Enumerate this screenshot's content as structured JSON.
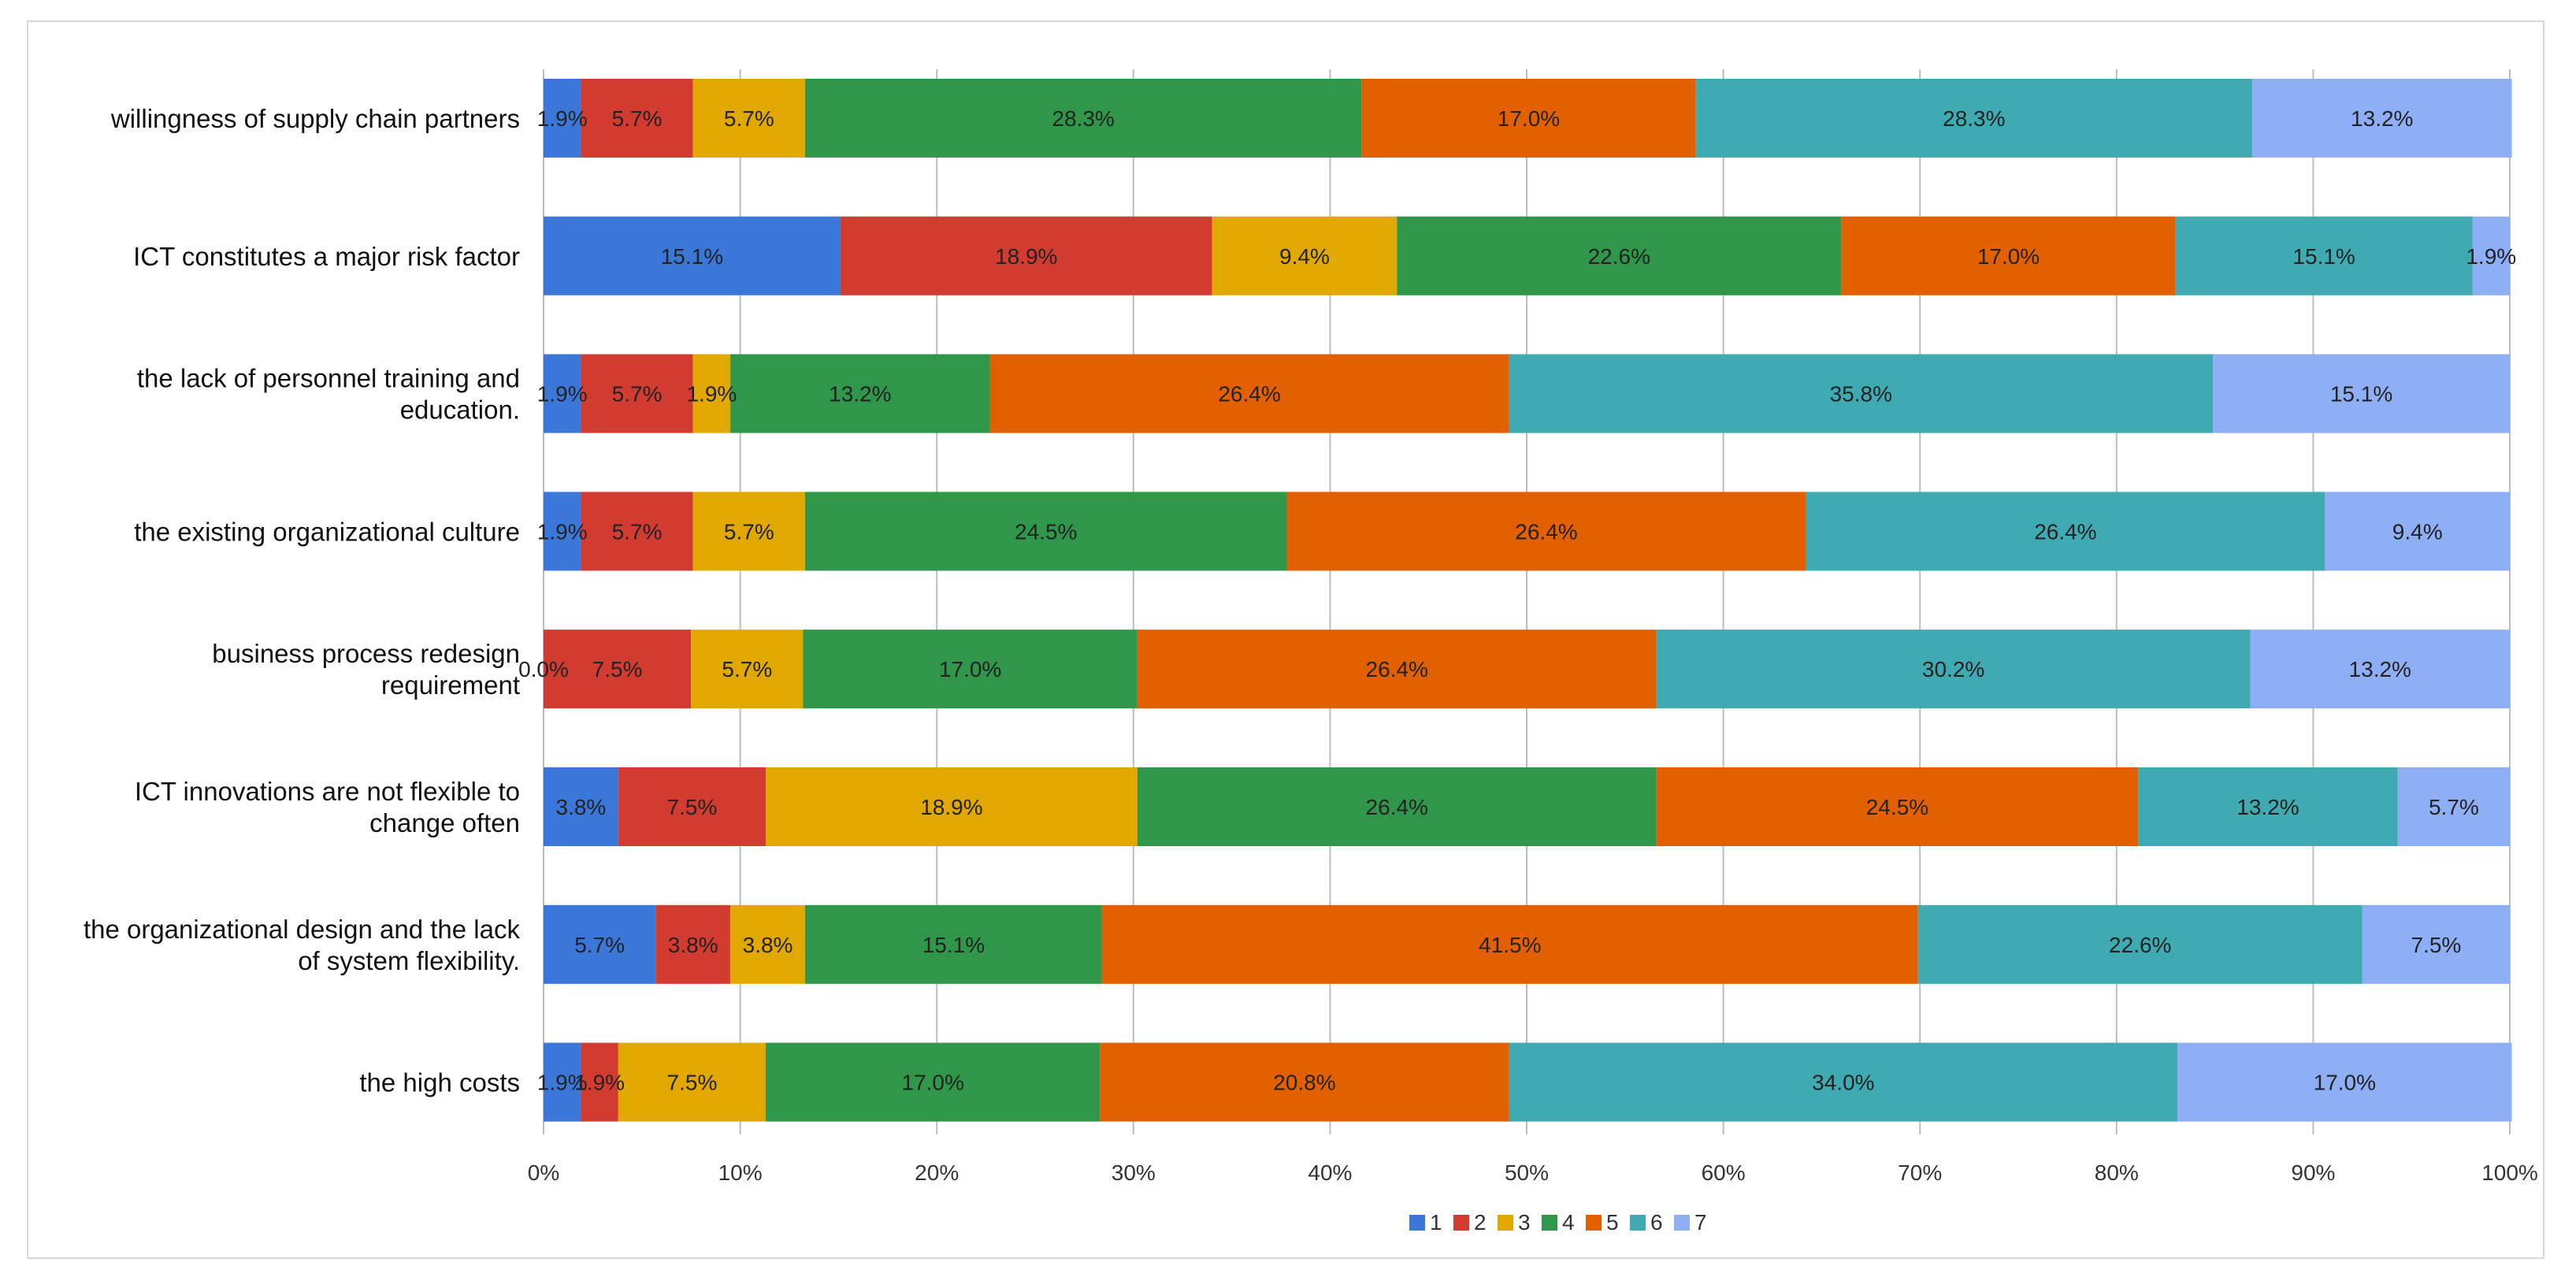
{
  "chart_data": {
    "type": "bar",
    "orientation": "horizontal",
    "stacked": "percent",
    "title": "",
    "xlabel": "",
    "ylabel": "",
    "xlim": [
      0,
      100
    ],
    "grid": true,
    "legend_position": "bottom",
    "x_ticks": [
      "0%",
      "10%",
      "20%",
      "30%",
      "40%",
      "50%",
      "60%",
      "70%",
      "80%",
      "90%",
      "100%"
    ],
    "categories": [
      [
        "willingness of supply chain partners"
      ],
      [
        "ICT constitutes a major risk factor"
      ],
      [
        "the lack of personnel training  and",
        "education."
      ],
      [
        "the existing organizational culture"
      ],
      [
        "business process redesign",
        "requirement"
      ],
      [
        "ICT innovations are not flexible to",
        "change often"
      ],
      [
        "the organizational design and the lack",
        "of system flexibility."
      ],
      [
        "the high costs"
      ]
    ],
    "series": [
      {
        "name": "1",
        "color": "#3a77d8",
        "values": [
          1.9,
          15.1,
          1.9,
          1.9,
          0.0,
          3.8,
          5.7,
          1.9
        ]
      },
      {
        "name": "2",
        "color": "#d23c30",
        "values": [
          5.7,
          18.9,
          5.7,
          5.7,
          7.5,
          7.5,
          3.8,
          1.9
        ]
      },
      {
        "name": "3",
        "color": "#e1a800",
        "values": [
          5.7,
          9.4,
          1.9,
          5.7,
          5.7,
          18.9,
          3.8,
          7.5
        ]
      },
      {
        "name": "4",
        "color": "#2f964a",
        "values": [
          28.3,
          22.6,
          13.2,
          24.5,
          17.0,
          26.4,
          15.1,
          17.0
        ]
      },
      {
        "name": "5",
        "color": "#e36000",
        "values": [
          17.0,
          17.0,
          26.4,
          26.4,
          26.4,
          24.5,
          41.5,
          20.8
        ]
      },
      {
        "name": "6",
        "color": "#3faab2",
        "values": [
          28.3,
          15.1,
          35.8,
          26.4,
          30.2,
          13.2,
          22.6,
          34.0
        ]
      },
      {
        "name": "7",
        "color": "#8eaef6",
        "values": [
          13.2,
          1.9,
          15.1,
          9.4,
          13.2,
          5.7,
          7.5,
          17.0
        ]
      }
    ]
  }
}
